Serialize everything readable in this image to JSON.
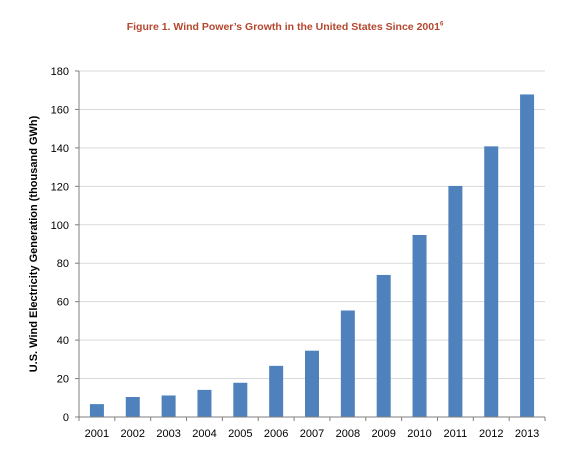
{
  "chart_data": {
    "type": "bar",
    "title": "Figure 1. Wind Power’s Growth in the United States Since 2001",
    "title_footnote": "6",
    "xlabel": "",
    "ylabel": "U.S. Wind Electricity Generation (thousand GWh)",
    "categories": [
      "2001",
      "2002",
      "2003",
      "2004",
      "2005",
      "2006",
      "2007",
      "2008",
      "2009",
      "2010",
      "2011",
      "2012",
      "2013"
    ],
    "values": [
      6.7,
      10.4,
      11.2,
      14.1,
      17.8,
      26.6,
      34.5,
      55.4,
      73.9,
      94.7,
      120.2,
      140.8,
      167.8
    ],
    "ylim": [
      0,
      180
    ],
    "yticks": [
      0,
      20,
      40,
      60,
      80,
      100,
      120,
      140,
      160,
      180
    ],
    "grid": true,
    "legend": "none",
    "colors": {
      "bar": "#4f81bd",
      "title": "#b5472f",
      "grid": "#d9d9d9"
    }
  }
}
